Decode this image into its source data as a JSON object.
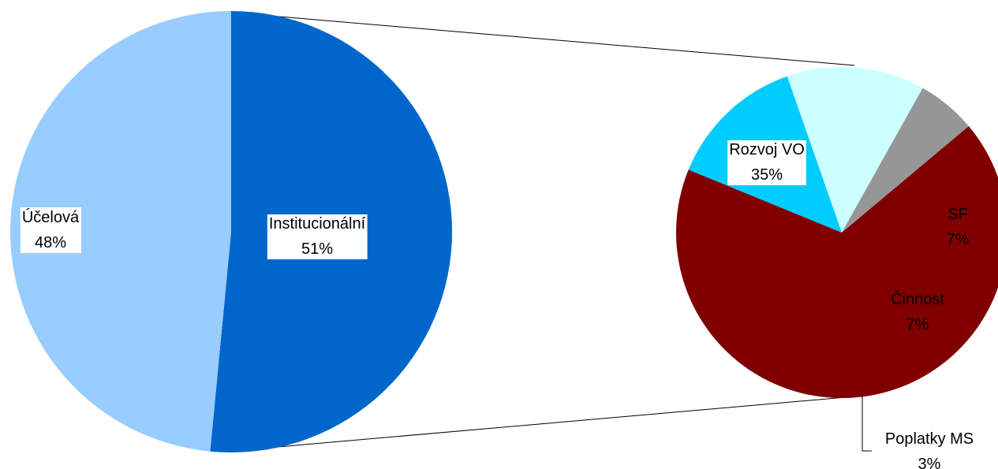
{
  "chart_data": {
    "type": "pie",
    "subtype": "pie-of-pie",
    "title": "",
    "main_pie": {
      "slices": [
        {
          "label": "Institucionální",
          "percent_label": "51%",
          "value": 51,
          "color": "#0066CC"
        },
        {
          "label": "Účelová",
          "percent_label": "48%",
          "value": 48,
          "color": "#99CCFF"
        }
      ]
    },
    "secondary_pie": {
      "slices": [
        {
          "label": "Rozvoj VO",
          "percent_label": "35%",
          "value": 35,
          "color": "#800000"
        },
        {
          "label": "SF",
          "percent_label": "7%",
          "value": 7,
          "color": "#00CCFF"
        },
        {
          "label": "Činnost",
          "percent_label": "7%",
          "value": 7,
          "color": "#CCFFFF"
        },
        {
          "label": "Poplatky MS",
          "percent_label": "3%",
          "value": 3,
          "color": "#969696"
        }
      ]
    },
    "legend": "none"
  }
}
